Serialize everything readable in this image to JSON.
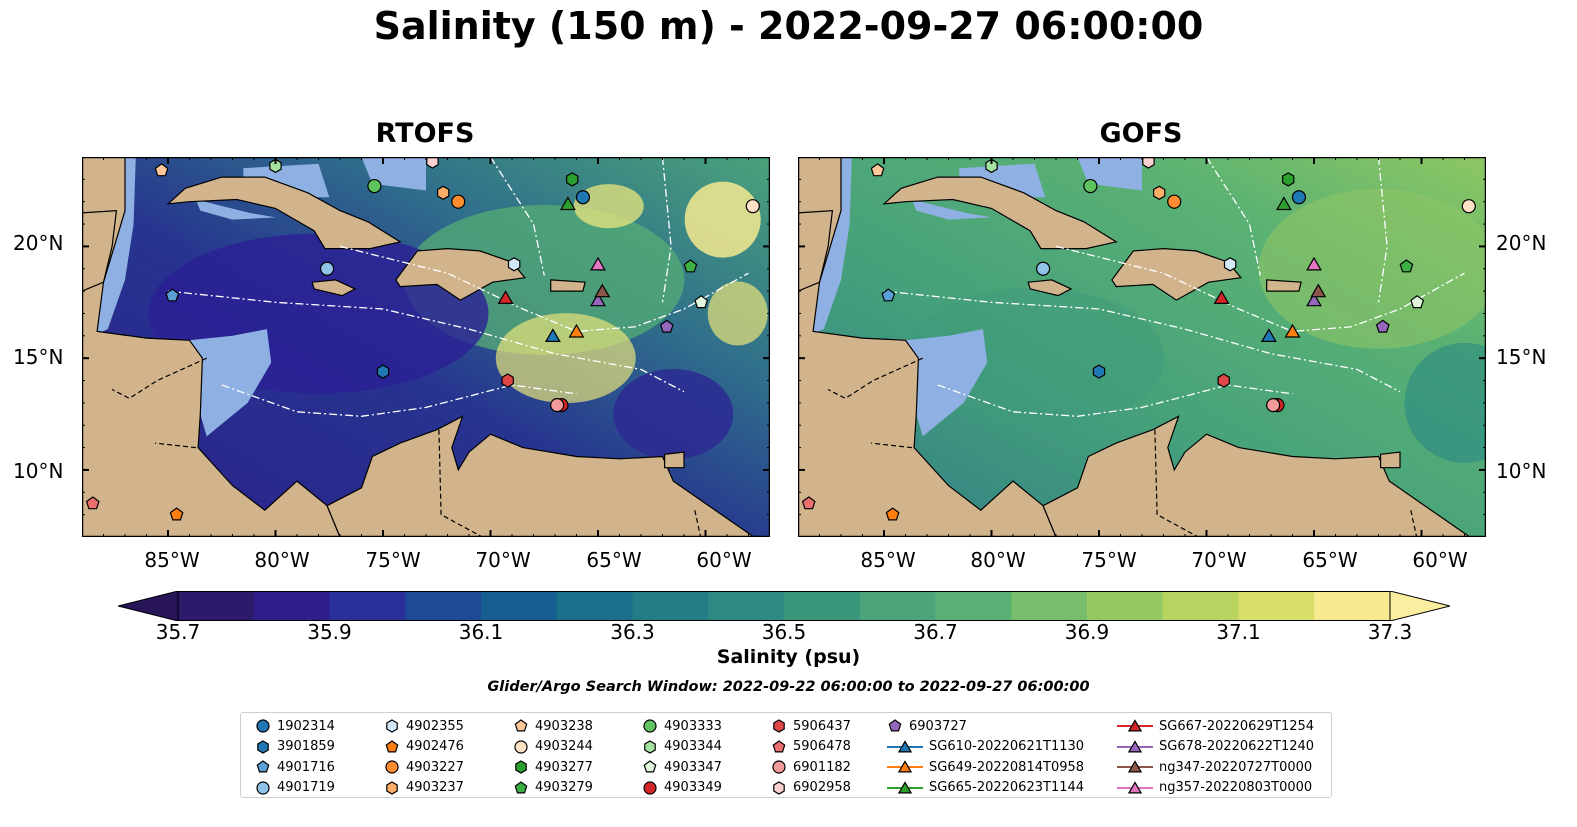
{
  "title": "Salinity (150 m) - 2022-09-27 06:00:00",
  "panels": [
    {
      "title": "RTOFS"
    },
    {
      "title": "GOFS"
    }
  ],
  "lat_ticks": [
    "20°N",
    "15°N",
    "10°N"
  ],
  "lon_ticks": [
    "85°W",
    "80°W",
    "75°W",
    "70°W",
    "65°W",
    "60°W"
  ],
  "colorbar": {
    "label": "Salinity (psu)",
    "ticks": [
      "35.7",
      "35.9",
      "36.1",
      "36.3",
      "36.5",
      "36.7",
      "36.9",
      "37.1",
      "37.3"
    ],
    "colors": [
      "#2d1a6b",
      "#2f1e8a",
      "#2a2f9a",
      "#1d4a96",
      "#155e8f",
      "#1a6f8b",
      "#237d86",
      "#2d8a82",
      "#3a977c",
      "#4ba47a",
      "#59b075",
      "#78bd6c",
      "#95c862",
      "#b9d360",
      "#d8de68",
      "#f7e98e"
    ],
    "under_color": "#281559",
    "over_color": "#fbeea0"
  },
  "search_window": "Glider/Argo Search Window: 2022-09-22 06:00:00 to 2022-09-27 06:00:00",
  "legend": [
    {
      "label": "1902314",
      "marker": "circle",
      "color": "#1f77b4"
    },
    {
      "label": "3901859",
      "marker": "hexagon",
      "color": "#1f77b4"
    },
    {
      "label": "4901716",
      "marker": "pentagon",
      "color": "#5aa0d8"
    },
    {
      "label": "4901719",
      "marker": "circle",
      "color": "#8fc3e8"
    },
    {
      "label": "4902355",
      "marker": "hexagon",
      "color": "#d3e8f7"
    },
    {
      "label": "4902476",
      "marker": "pentagon",
      "color": "#ff7f0e"
    },
    {
      "label": "4903227",
      "marker": "circle",
      "color": "#ff8c2e"
    },
    {
      "label": "4903237",
      "marker": "hexagon",
      "color": "#ffae6a"
    },
    {
      "label": "4903238",
      "marker": "pentagon",
      "color": "#ffc89a"
    },
    {
      "label": "4903244",
      "marker": "circle",
      "color": "#ffe1c6"
    },
    {
      "label": "4903277",
      "marker": "hexagon",
      "color": "#2ca02c"
    },
    {
      "label": "4903279",
      "marker": "pentagon",
      "color": "#3cb043"
    },
    {
      "label": "4903333",
      "marker": "circle",
      "color": "#5fc45f"
    },
    {
      "label": "4903344",
      "marker": "hexagon",
      "color": "#a4e3a0"
    },
    {
      "label": "4903347",
      "marker": "pentagon",
      "color": "#e0f7dc"
    },
    {
      "label": "4903349",
      "marker": "circle",
      "color": "#d62728"
    },
    {
      "label": "5906437",
      "marker": "hexagon",
      "color": "#e04848"
    },
    {
      "label": "5906478",
      "marker": "pentagon",
      "color": "#ec6f6f"
    },
    {
      "label": "6901182",
      "marker": "circle",
      "color": "#f39a9a"
    },
    {
      "label": "6902958",
      "marker": "hexagon",
      "color": "#fbd0d0"
    },
    {
      "label": "6903727",
      "marker": "pentagon",
      "color": "#9467bd"
    },
    {
      "label": "SG610-20220621T1130",
      "marker": "triangle",
      "color": "#1f77b4"
    },
    {
      "label": "SG649-20220814T0958",
      "marker": "triangle",
      "color": "#ff7f0e"
    },
    {
      "label": "SG665-20220623T1144",
      "marker": "triangle",
      "color": "#2ca02c"
    },
    {
      "label": "SG667-20220629T1254",
      "marker": "triangle",
      "color": "#d62728"
    },
    {
      "label": "SG678-20220622T1240",
      "marker": "triangle",
      "color": "#9467bd"
    },
    {
      "label": "ng347-20220727T0000",
      "marker": "triangle",
      "color": "#8c564b"
    },
    {
      "label": "ng357-20220803T0000",
      "marker": "triangle",
      "color": "#e377c2"
    }
  ],
  "observations": [
    {
      "id": "1902314",
      "lon": -65.7,
      "lat": 22.2
    },
    {
      "id": "3901859",
      "lon": -75.0,
      "lat": 14.4
    },
    {
      "id": "4901716",
      "lon": -84.8,
      "lat": 17.8
    },
    {
      "id": "4901719",
      "lon": -77.6,
      "lat": 19.0
    },
    {
      "id": "4902355",
      "lon": -68.9,
      "lat": 19.2
    },
    {
      "id": "4902476",
      "lon": -84.6,
      "lat": 8.0
    },
    {
      "id": "4903227",
      "lon": -71.5,
      "lat": 22.0
    },
    {
      "id": "4903237",
      "lon": -72.2,
      "lat": 22.4
    },
    {
      "id": "4903238",
      "lon": -85.3,
      "lat": 23.4
    },
    {
      "id": "4903244",
      "lon": -57.8,
      "lat": 21.8
    },
    {
      "id": "4903277",
      "lon": -66.2,
      "lat": 23.0
    },
    {
      "id": "4903279",
      "lon": -60.7,
      "lat": 19.1
    },
    {
      "id": "4903333",
      "lon": -75.4,
      "lat": 22.7
    },
    {
      "id": "4903344",
      "lon": -80.0,
      "lat": 23.6
    },
    {
      "id": "4903347",
      "lon": -60.2,
      "lat": 17.5
    },
    {
      "id": "4903349",
      "lon": -66.7,
      "lat": 12.9
    },
    {
      "id": "5906437",
      "lon": -69.2,
      "lat": 14.0
    },
    {
      "id": "5906478",
      "lon": -88.5,
      "lat": 8.5
    },
    {
      "id": "6901182",
      "lon": -66.9,
      "lat": 12.9
    },
    {
      "id": "6902958",
      "lon": -72.7,
      "lat": 23.8
    },
    {
      "id": "6903727",
      "lon": -61.8,
      "lat": 16.4
    },
    {
      "id": "SG610-20220621T1130",
      "lon": -67.1,
      "lat": 16.0
    },
    {
      "id": "SG649-20220814T0958",
      "lon": -66.0,
      "lat": 16.2
    },
    {
      "id": "SG665-20220623T1144",
      "lon": -66.4,
      "lat": 21.9
    },
    {
      "id": "SG667-20220629T1254",
      "lon": -69.3,
      "lat": 17.7
    },
    {
      "id": "SG678-20220622T1240",
      "lon": -65.0,
      "lat": 17.6
    },
    {
      "id": "ng347-20220727T0000",
      "lon": -64.8,
      "lat": 18.0
    },
    {
      "id": "ng357-20220803T0000",
      "lon": -65.0,
      "lat": 19.2
    }
  ]
}
